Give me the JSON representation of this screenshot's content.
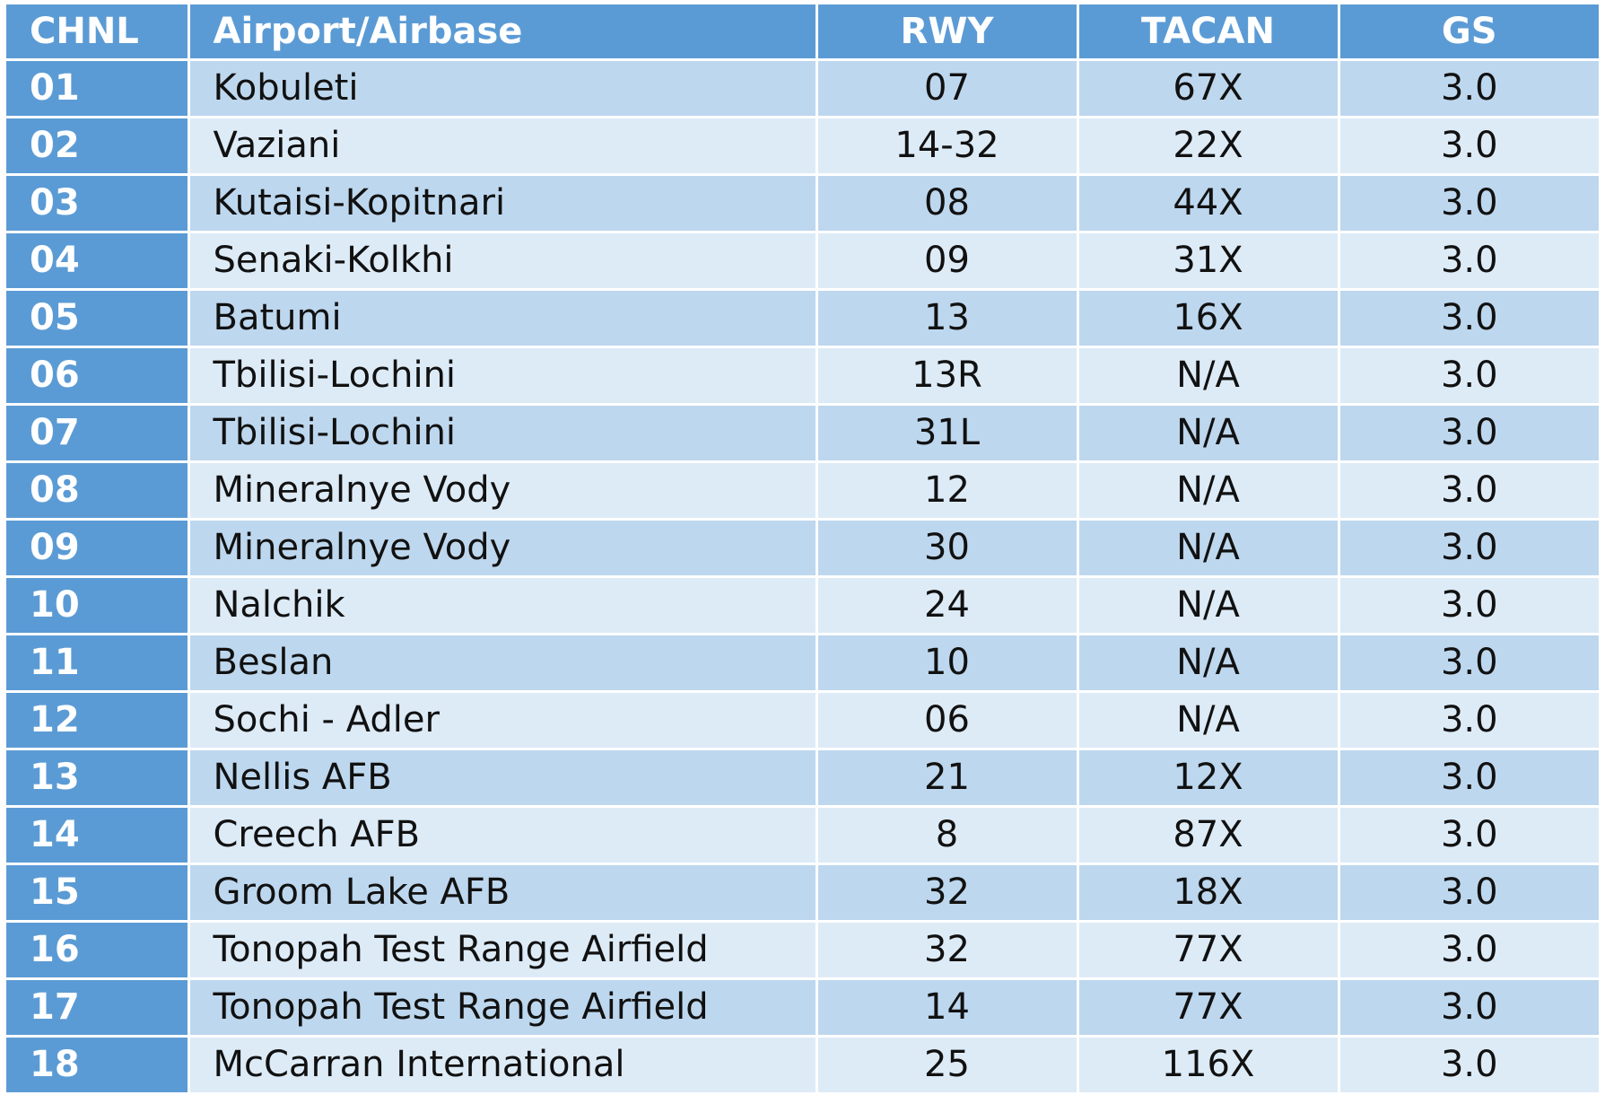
{
  "table": {
    "headers": {
      "chnl": "CHNL",
      "airport": "Airport/Airbase",
      "rwy": "RWY",
      "tacan": "TACAN",
      "gs": "GS"
    },
    "rows": [
      {
        "chnl": "01",
        "airport": "Kobuleti",
        "rwy": "07",
        "tacan": "67X",
        "gs": "3.0"
      },
      {
        "chnl": "02",
        "airport": "Vaziani",
        "rwy": "14-32",
        "tacan": "22X",
        "gs": "3.0"
      },
      {
        "chnl": "03",
        "airport": "Kutaisi-Kopitnari",
        "rwy": "08",
        "tacan": "44X",
        "gs": "3.0"
      },
      {
        "chnl": "04",
        "airport": "Senaki-Kolkhi",
        "rwy": "09",
        "tacan": "31X",
        "gs": "3.0"
      },
      {
        "chnl": "05",
        "airport": "Batumi",
        "rwy": "13",
        "tacan": "16X",
        "gs": "3.0"
      },
      {
        "chnl": "06",
        "airport": "Tbilisi-Lochini",
        "rwy": "13R",
        "tacan": "N/A",
        "gs": "3.0"
      },
      {
        "chnl": "07",
        "airport": "Tbilisi-Lochini",
        "rwy": "31L",
        "tacan": "N/A",
        "gs": "3.0"
      },
      {
        "chnl": "08",
        "airport": "Mineralnye Vody",
        "rwy": "12",
        "tacan": "N/A",
        "gs": "3.0"
      },
      {
        "chnl": "09",
        "airport": "Mineralnye Vody",
        "rwy": "30",
        "tacan": "N/A",
        "gs": "3.0"
      },
      {
        "chnl": "10",
        "airport": "Nalchik",
        "rwy": "24",
        "tacan": "N/A",
        "gs": "3.0"
      },
      {
        "chnl": "11",
        "airport": "Beslan",
        "rwy": "10",
        "tacan": "N/A",
        "gs": "3.0"
      },
      {
        "chnl": "12",
        "airport": "Sochi - Adler",
        "rwy": "06",
        "tacan": "N/A",
        "gs": "3.0"
      },
      {
        "chnl": "13",
        "airport": "Nellis AFB",
        "rwy": "21",
        "tacan": "12X",
        "gs": "3.0"
      },
      {
        "chnl": "14",
        "airport": "Creech AFB",
        "rwy": "8",
        "tacan": "87X",
        "gs": "3.0"
      },
      {
        "chnl": "15",
        "airport": "Groom Lake AFB",
        "rwy": "32",
        "tacan": "18X",
        "gs": "3.0"
      },
      {
        "chnl": "16",
        "airport": "Tonopah Test Range Airfield",
        "rwy": "32",
        "tacan": "77X",
        "gs": "3.0"
      },
      {
        "chnl": "17",
        "airport": "Tonopah Test Range Airfield",
        "rwy": "14",
        "tacan": "77X",
        "gs": "3.0"
      },
      {
        "chnl": "18",
        "airport": "McCarran International",
        "rwy": "25",
        "tacan": "116X",
        "gs": "3.0"
      }
    ]
  },
  "colors": {
    "header_bg": "#5b9bd5",
    "header_text": "#ffffff",
    "row_band_dark": "#bdd7ee",
    "row_band_light": "#ddebf7",
    "cell_text": "#111111"
  }
}
